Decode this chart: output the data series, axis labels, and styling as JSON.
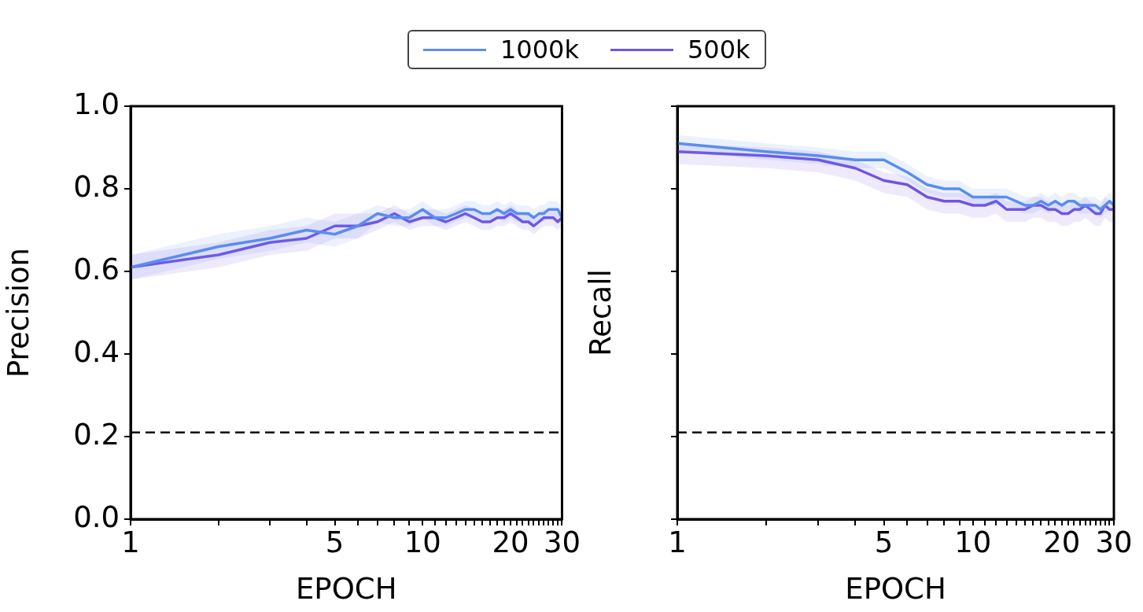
{
  "chart_data": [
    {
      "type": "line",
      "ylabel": "Precision",
      "xlabel": "EPOCH",
      "log": "x",
      "grid": false,
      "legend": "top",
      "marker": "none",
      "line_style": "solid",
      "x": [
        1,
        2,
        3,
        4,
        5,
        6,
        7,
        8,
        9,
        10,
        11,
        12,
        13,
        14,
        15,
        16,
        17,
        18,
        19,
        20,
        21,
        22,
        23,
        24,
        25,
        26,
        27,
        28,
        29,
        30
      ],
      "xlim": [
        1,
        30
      ],
      "xticks": [
        1,
        {
          "value": 2,
          "label": null
        },
        {
          "value": 3,
          "label": null
        },
        {
          "value": 4,
          "label": null
        },
        5,
        {
          "value": 6,
          "label": null
        },
        {
          "value": 7,
          "label": null
        },
        {
          "value": 8,
          "label": null
        },
        {
          "value": 9,
          "label": null
        },
        10,
        {
          "value": 11,
          "label": null
        },
        {
          "value": 12,
          "label": null
        },
        {
          "value": 13,
          "label": null
        },
        {
          "value": 14,
          "label": null
        },
        {
          "value": 15,
          "label": null
        },
        {
          "value": 16,
          "label": null
        },
        {
          "value": 17,
          "label": null
        },
        {
          "value": 18,
          "label": null
        },
        {
          "value": 19,
          "label": null
        },
        20,
        {
          "value": 21,
          "label": null
        },
        {
          "value": 22,
          "label": null
        },
        {
          "value": 23,
          "label": null
        },
        {
          "value": 24,
          "label": null
        },
        {
          "value": 25,
          "label": null
        },
        {
          "value": 26,
          "label": null
        },
        {
          "value": 27,
          "label": null
        },
        {
          "value": 28,
          "label": null
        },
        {
          "value": 29,
          "label": null
        },
        30
      ],
      "ylim": [
        0,
        1
      ],
      "yticks": [
        {
          "value": 0,
          "label": "0.0"
        },
        0.2,
        0.4,
        0.6,
        0.8,
        {
          "value": 1,
          "label": "1.0"
        }
      ],
      "ref_lines": [
        {
          "axis": "y",
          "value": 0.21,
          "color": "#000000",
          "line_style": "dashed"
        }
      ],
      "series": [
        {
          "name": "1000k",
          "color": "#5b8ef0",
          "values": [
            0.61,
            0.66,
            0.68,
            0.7,
            0.69,
            0.71,
            0.74,
            0.73,
            0.73,
            0.75,
            0.73,
            0.73,
            0.74,
            0.75,
            0.75,
            0.74,
            0.74,
            0.75,
            0.74,
            0.75,
            0.74,
            0.74,
            0.74,
            0.73,
            0.74,
            0.74,
            0.75,
            0.75,
            0.75,
            0.73
          ],
          "lower": [
            0.58,
            0.63,
            0.65,
            0.67,
            0.66,
            0.68,
            0.72,
            0.71,
            0.71,
            0.73,
            0.71,
            0.71,
            0.72,
            0.73,
            0.73,
            0.72,
            0.72,
            0.73,
            0.72,
            0.73,
            0.72,
            0.72,
            0.72,
            0.71,
            0.72,
            0.72,
            0.73,
            0.73,
            0.73,
            0.71
          ],
          "upper": [
            0.64,
            0.69,
            0.71,
            0.73,
            0.72,
            0.74,
            0.76,
            0.75,
            0.75,
            0.77,
            0.75,
            0.75,
            0.76,
            0.77,
            0.77,
            0.76,
            0.76,
            0.77,
            0.76,
            0.77,
            0.76,
            0.76,
            0.76,
            0.75,
            0.76,
            0.76,
            0.77,
            0.77,
            0.77,
            0.75
          ]
        },
        {
          "name": "500k",
          "color": "#7155e6",
          "values": [
            0.61,
            0.64,
            0.67,
            0.68,
            0.71,
            0.71,
            0.72,
            0.74,
            0.72,
            0.73,
            0.73,
            0.72,
            0.73,
            0.74,
            0.73,
            0.72,
            0.72,
            0.73,
            0.73,
            0.74,
            0.73,
            0.72,
            0.72,
            0.71,
            0.72,
            0.73,
            0.73,
            0.73,
            0.72,
            0.73
          ],
          "lower": [
            0.58,
            0.61,
            0.64,
            0.65,
            0.68,
            0.68,
            0.7,
            0.72,
            0.7,
            0.71,
            0.71,
            0.7,
            0.71,
            0.72,
            0.71,
            0.7,
            0.7,
            0.71,
            0.71,
            0.72,
            0.71,
            0.7,
            0.7,
            0.69,
            0.7,
            0.71,
            0.71,
            0.71,
            0.7,
            0.71
          ],
          "upper": [
            0.64,
            0.67,
            0.7,
            0.71,
            0.74,
            0.74,
            0.74,
            0.76,
            0.74,
            0.75,
            0.75,
            0.74,
            0.75,
            0.76,
            0.75,
            0.74,
            0.74,
            0.75,
            0.75,
            0.76,
            0.75,
            0.74,
            0.74,
            0.73,
            0.74,
            0.75,
            0.75,
            0.75,
            0.74,
            0.75
          ]
        }
      ]
    },
    {
      "type": "line",
      "ylabel": "Recall",
      "xlabel": "EPOCH",
      "log": "x",
      "grid": false,
      "legend": false,
      "marker": "none",
      "line_style": "solid",
      "tick_labels": "x",
      "x": [
        1,
        2,
        3,
        4,
        5,
        6,
        7,
        8,
        9,
        10,
        11,
        12,
        13,
        14,
        15,
        16,
        17,
        18,
        19,
        20,
        21,
        22,
        23,
        24,
        25,
        26,
        27,
        28,
        29,
        30
      ],
      "xlim": [
        1,
        30
      ],
      "xticks": [
        1,
        {
          "value": 2,
          "label": null
        },
        {
          "value": 3,
          "label": null
        },
        {
          "value": 4,
          "label": null
        },
        5,
        {
          "value": 6,
          "label": null
        },
        {
          "value": 7,
          "label": null
        },
        {
          "value": 8,
          "label": null
        },
        {
          "value": 9,
          "label": null
        },
        10,
        {
          "value": 11,
          "label": null
        },
        {
          "value": 12,
          "label": null
        },
        {
          "value": 13,
          "label": null
        },
        {
          "value": 14,
          "label": null
        },
        {
          "value": 15,
          "label": null
        },
        {
          "value": 16,
          "label": null
        },
        {
          "value": 17,
          "label": null
        },
        {
          "value": 18,
          "label": null
        },
        {
          "value": 19,
          "label": null
        },
        20,
        {
          "value": 21,
          "label": null
        },
        {
          "value": 22,
          "label": null
        },
        {
          "value": 23,
          "label": null
        },
        {
          "value": 24,
          "label": null
        },
        {
          "value": 25,
          "label": null
        },
        {
          "value": 26,
          "label": null
        },
        {
          "value": 27,
          "label": null
        },
        {
          "value": 28,
          "label": null
        },
        {
          "value": 29,
          "label": null
        },
        30
      ],
      "ylim": [
        0,
        1
      ],
      "yticks": [
        {
          "value": 0,
          "label": null
        },
        {
          "value": 0.2,
          "label": null
        },
        {
          "value": 0.4,
          "label": null
        },
        {
          "value": 0.6,
          "label": null
        },
        {
          "value": 0.8,
          "label": null
        },
        {
          "value": 1,
          "label": null
        }
      ],
      "ref_lines": [
        {
          "axis": "y",
          "value": 0.21,
          "color": "#000000",
          "line_style": "dashed"
        }
      ],
      "series": [
        {
          "color": "#5b8ef0",
          "values": [
            0.91,
            0.89,
            0.88,
            0.87,
            0.87,
            0.84,
            0.81,
            0.8,
            0.8,
            0.78,
            0.78,
            0.78,
            0.78,
            0.77,
            0.76,
            0.76,
            0.77,
            0.76,
            0.77,
            0.76,
            0.77,
            0.77,
            0.76,
            0.76,
            0.76,
            0.76,
            0.75,
            0.76,
            0.77,
            0.76
          ],
          "lower": [
            0.89,
            0.87,
            0.86,
            0.85,
            0.85,
            0.82,
            0.79,
            0.78,
            0.78,
            0.76,
            0.76,
            0.76,
            0.76,
            0.75,
            0.74,
            0.74,
            0.75,
            0.74,
            0.75,
            0.74,
            0.75,
            0.75,
            0.74,
            0.74,
            0.74,
            0.74,
            0.73,
            0.74,
            0.75,
            0.74
          ],
          "upper": [
            0.93,
            0.91,
            0.9,
            0.89,
            0.89,
            0.86,
            0.83,
            0.82,
            0.82,
            0.8,
            0.8,
            0.8,
            0.8,
            0.79,
            0.78,
            0.78,
            0.79,
            0.78,
            0.79,
            0.78,
            0.79,
            0.79,
            0.78,
            0.78,
            0.78,
            0.78,
            0.77,
            0.78,
            0.79,
            0.78
          ]
        },
        {
          "color": "#7155e6",
          "values": [
            0.89,
            0.88,
            0.87,
            0.85,
            0.82,
            0.81,
            0.78,
            0.77,
            0.77,
            0.76,
            0.76,
            0.77,
            0.75,
            0.75,
            0.75,
            0.76,
            0.76,
            0.75,
            0.75,
            0.74,
            0.74,
            0.75,
            0.75,
            0.76,
            0.75,
            0.74,
            0.74,
            0.76,
            0.75,
            0.75
          ],
          "lower": [
            0.86,
            0.85,
            0.84,
            0.82,
            0.79,
            0.78,
            0.75,
            0.74,
            0.74,
            0.73,
            0.73,
            0.74,
            0.72,
            0.72,
            0.72,
            0.73,
            0.73,
            0.72,
            0.72,
            0.71,
            0.71,
            0.72,
            0.72,
            0.73,
            0.72,
            0.71,
            0.71,
            0.73,
            0.72,
            0.72
          ],
          "upper": [
            0.91,
            0.9,
            0.89,
            0.87,
            0.84,
            0.83,
            0.8,
            0.79,
            0.79,
            0.78,
            0.78,
            0.79,
            0.77,
            0.77,
            0.77,
            0.78,
            0.78,
            0.77,
            0.77,
            0.76,
            0.76,
            0.77,
            0.77,
            0.78,
            0.77,
            0.76,
            0.76,
            0.78,
            0.77,
            0.77
          ]
        }
      ]
    }
  ]
}
